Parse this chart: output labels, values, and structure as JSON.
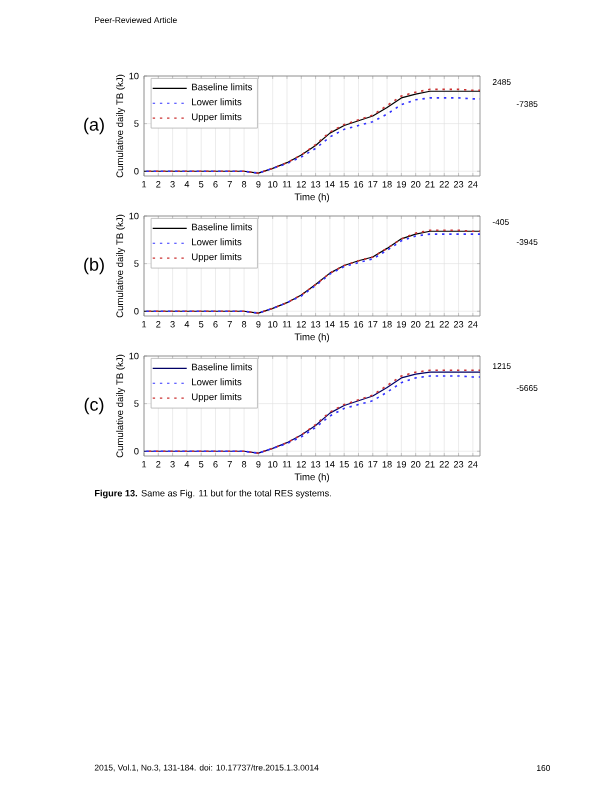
{
  "chart_data": [
    {
      "type": "line",
      "title": "(a)",
      "xlabel": "Time (h)",
      "ylabel": "Cumulative daily TB (kJ)",
      "xlim": [
        1,
        24.5
      ],
      "ylim": [
        -0.5,
        10
      ],
      "xticks": [
        1,
        2,
        3,
        4,
        5,
        6,
        7,
        8,
        9,
        10,
        11,
        12,
        13,
        14,
        15,
        16,
        17,
        18,
        19,
        20,
        21,
        22,
        23,
        24
      ],
      "yticks": [
        0,
        5,
        10
      ],
      "grid": true,
      "legend": "top left",
      "x": [
        1,
        2,
        3,
        4,
        5,
        6,
        7,
        8,
        9,
        10,
        11,
        12,
        13,
        14,
        15,
        16,
        17,
        18,
        19,
        20,
        21,
        22,
        23,
        24,
        24.5
      ],
      "series": [
        {
          "name": "Baseline limits",
          "color": "#000000",
          "line_style": "solid",
          "values": [
            0,
            0,
            0,
            0,
            0,
            0,
            0,
            0,
            -0.2,
            0.3,
            0.9,
            1.7,
            2.7,
            4.0,
            4.8,
            5.3,
            5.8,
            6.7,
            7.7,
            8.1,
            8.4,
            8.4,
            8.4,
            8.4,
            8.4
          ]
        },
        {
          "name": "Lower limits",
          "color": "#3333ff",
          "line_style": "dotted",
          "values": [
            0,
            0,
            0,
            0,
            0,
            0,
            0,
            0,
            -0.2,
            0.3,
            0.8,
            1.5,
            2.4,
            3.6,
            4.4,
            4.8,
            5.2,
            6.0,
            7.0,
            7.5,
            7.7,
            7.7,
            7.7,
            7.6,
            7.6
          ]
        },
        {
          "name": "Upper limits",
          "color": "#cc3333",
          "line_style": "dotted",
          "values": [
            0,
            0,
            0,
            0,
            0,
            0,
            0,
            0,
            -0.2,
            0.3,
            0.9,
            1.7,
            2.8,
            4.1,
            4.9,
            5.4,
            5.9,
            6.9,
            7.9,
            8.3,
            8.6,
            8.6,
            8.6,
            8.5,
            8.5
          ]
        }
      ],
      "annotations": [
        "Peer-Reviewed Article",
        "2485",
        "-7385"
      ]
    },
    {
      "type": "line",
      "title": "(b)",
      "xlabel": "Time (h)",
      "ylabel": "Cumulative daily TB (kJ)",
      "xlim": [
        1,
        24.5
      ],
      "ylim": [
        -0.5,
        10
      ],
      "xticks": [
        1,
        2,
        3,
        4,
        5,
        6,
        7,
        8,
        9,
        10,
        11,
        12,
        13,
        14,
        15,
        16,
        17,
        18,
        19,
        20,
        21,
        22,
        23,
        24
      ],
      "yticks": [
        0,
        5,
        10
      ],
      "grid": true,
      "legend": "top left",
      "x": [
        1,
        2,
        3,
        4,
        5,
        6,
        7,
        8,
        9,
        10,
        11,
        12,
        13,
        14,
        15,
        16,
        17,
        18,
        19,
        20,
        21,
        22,
        23,
        24,
        24.5
      ],
      "series": [
        {
          "name": "Baseline limits",
          "color": "#000000",
          "line_style": "solid",
          "values": [
            0,
            0,
            0,
            0,
            0,
            0,
            0,
            0,
            -0.2,
            0.3,
            0.9,
            1.7,
            2.8,
            4.0,
            4.8,
            5.3,
            5.7,
            6.6,
            7.6,
            8.1,
            8.4,
            8.4,
            8.4,
            8.4,
            8.4
          ]
        },
        {
          "name": "Lower limits",
          "color": "#3333ff",
          "line_style": "dotted",
          "values": [
            0,
            0,
            0,
            0,
            0,
            0,
            0,
            0,
            -0.2,
            0.3,
            0.9,
            1.6,
            2.7,
            3.9,
            4.7,
            5.1,
            5.5,
            6.4,
            7.4,
            7.9,
            8.1,
            8.1,
            8.1,
            8.1,
            8.1
          ]
        },
        {
          "name": "Upper limits",
          "color": "#cc3333",
          "line_style": "dotted",
          "values": [
            0,
            0,
            0,
            0,
            0,
            0,
            0,
            0,
            -0.2,
            0.3,
            0.9,
            1.7,
            2.8,
            4.0,
            4.8,
            5.3,
            5.7,
            6.6,
            7.6,
            8.2,
            8.5,
            8.5,
            8.5,
            8.4,
            8.4
          ]
        }
      ],
      "annotations": [
        "-405",
        "-3945"
      ]
    },
    {
      "type": "line",
      "title": "(c)",
      "xlabel": "Time (h)",
      "ylabel": "Cumulative daily TB (kJ)",
      "xlim": [
        1,
        24.5
      ],
      "ylim": [
        -0.5,
        10
      ],
      "xticks": [
        1,
        2,
        3,
        4,
        5,
        6,
        7,
        8,
        9,
        10,
        11,
        12,
        13,
        14,
        15,
        16,
        17,
        18,
        19,
        20,
        21,
        22,
        23,
        24
      ],
      "yticks": [
        0,
        5,
        10
      ],
      "grid": true,
      "legend": "top left",
      "x": [
        1,
        2,
        3,
        4,
        5,
        6,
        7,
        8,
        9,
        10,
        11,
        12,
        13,
        14,
        15,
        16,
        17,
        18,
        19,
        20,
        21,
        22,
        23,
        24,
        24.5
      ],
      "series": [
        {
          "name": "Baseline limits",
          "color": "#000066",
          "line_style": "solid",
          "values": [
            0,
            0,
            0,
            0,
            0,
            0,
            0,
            0,
            -0.2,
            0.3,
            0.9,
            1.7,
            2.7,
            4.0,
            4.8,
            5.3,
            5.8,
            6.7,
            7.7,
            8.1,
            8.3,
            8.3,
            8.3,
            8.3,
            8.3
          ]
        },
        {
          "name": "Lower limits",
          "color": "#3333ff",
          "line_style": "dotted",
          "values": [
            0,
            0,
            0,
            0,
            0,
            0,
            0,
            0,
            -0.2,
            0.3,
            0.8,
            1.5,
            2.5,
            3.7,
            4.5,
            4.9,
            5.3,
            6.2,
            7.2,
            7.7,
            7.9,
            7.9,
            7.9,
            7.8,
            7.8
          ]
        },
        {
          "name": "Upper limits",
          "color": "#cc3333",
          "line_style": "dotted",
          "values": [
            0,
            0,
            0,
            0,
            0,
            0,
            0,
            0,
            -0.2,
            0.3,
            0.9,
            1.7,
            2.8,
            4.1,
            4.9,
            5.4,
            5.9,
            6.9,
            7.9,
            8.3,
            8.5,
            8.5,
            8.5,
            8.5,
            8.5
          ]
        }
      ],
      "annotations": [
        "1215",
        "-5665",
        "**Figure 13.** Same as Fig. 11 but for the total RES systems.",
        "2015, Vol.1, No.3, 131-184. doi: 10.17737/tre.2015.1.3.0014",
        "160"
      ]
    }
  ]
}
